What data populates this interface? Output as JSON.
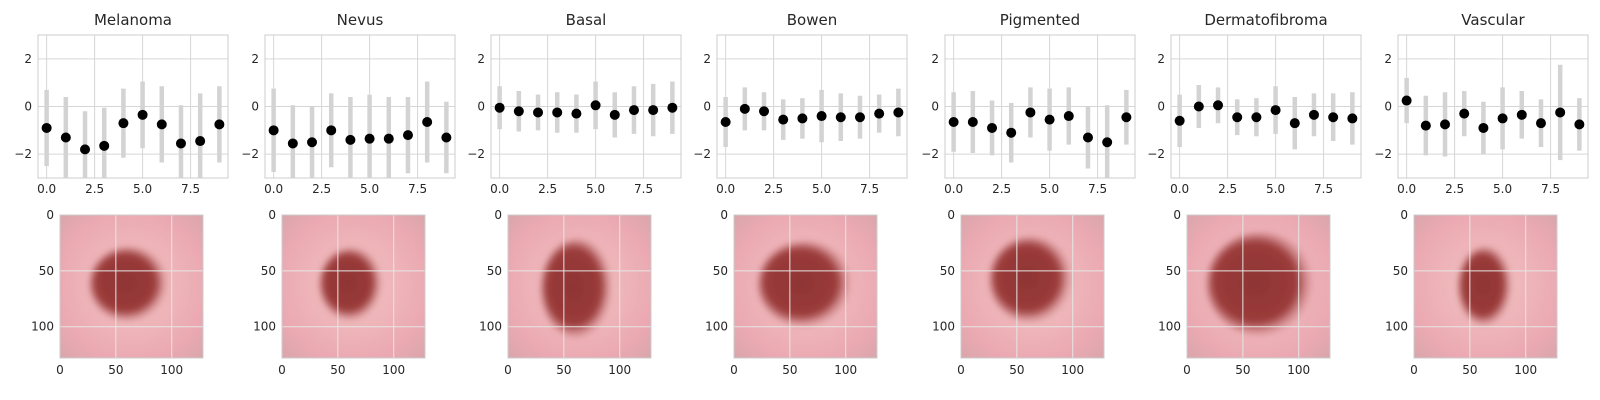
{
  "figure": {
    "background": "#ffffff"
  },
  "style": {
    "grid": "#d6d6d6",
    "frame": "#cccccc",
    "errorbar": "#d3d3d3",
    "marker": "#000000",
    "skin": "#eba9b2",
    "lesion": "#8e3434"
  },
  "chart_data": [
    {
      "type": "scatter",
      "title": "Melanoma",
      "x": [
        0,
        1,
        2,
        3,
        4,
        5,
        6,
        7,
        8,
        9
      ],
      "y": [
        -0.9,
        -1.3,
        -1.8,
        -1.65,
        -0.7,
        -0.35,
        -0.75,
        -1.55,
        -1.45,
        -0.75
      ],
      "err": [
        1.6,
        1.7,
        1.6,
        1.6,
        1.45,
        1.4,
        1.6,
        1.6,
        2.0,
        1.6
      ],
      "xticks": [
        0.0,
        2.5,
        5.0,
        7.5
      ],
      "xtick_labels": [
        "0.0",
        "2.5",
        "5.0",
        "7.5"
      ],
      "yticks": [
        -2,
        0,
        2
      ],
      "ytick_labels": [
        "−2",
        "0",
        "2"
      ],
      "xlim": [
        -0.45,
        9.45
      ],
      "ylim": [
        -3,
        3
      ],
      "grid": true,
      "image": {
        "type": "heatmap",
        "tick_labels_x": [
          "0",
          "50",
          "100"
        ],
        "tick_labels_y": [
          "0",
          "50",
          "100"
        ],
        "extent": [
          0,
          128
        ],
        "lesion": {
          "cx": 62,
          "cy": 62,
          "rx": 35,
          "ry": 33
        }
      }
    },
    {
      "type": "scatter",
      "title": "Nevus",
      "x": [
        0,
        1,
        2,
        3,
        4,
        5,
        6,
        7,
        8,
        9
      ],
      "y": [
        -1.0,
        -1.55,
        -1.5,
        -1.0,
        -1.4,
        -1.35,
        -1.35,
        -1.2,
        -0.65,
        -1.3
      ],
      "err": [
        1.75,
        1.6,
        1.5,
        1.55,
        1.8,
        1.85,
        1.75,
        1.6,
        1.7,
        1.5
      ],
      "xticks": [
        0.0,
        2.5,
        5.0,
        7.5
      ],
      "xtick_labels": [
        "0.0",
        "2.5",
        "5.0",
        "7.5"
      ],
      "yticks": [
        -2,
        0,
        2
      ],
      "ytick_labels": [
        "−2",
        "0",
        "2"
      ],
      "xlim": [
        -0.45,
        9.45
      ],
      "ylim": [
        -3,
        3
      ],
      "grid": true,
      "image": {
        "type": "heatmap",
        "tick_labels_x": [
          "0",
          "50",
          "100"
        ],
        "tick_labels_y": [
          "0",
          "50",
          "100"
        ],
        "extent": [
          0,
          128
        ],
        "lesion": {
          "cx": 62,
          "cy": 62,
          "rx": 28,
          "ry": 32
        }
      }
    },
    {
      "type": "scatter",
      "title": "Basal",
      "x": [
        0,
        1,
        2,
        3,
        4,
        5,
        6,
        7,
        8,
        9
      ],
      "y": [
        -0.05,
        -0.2,
        -0.25,
        -0.25,
        -0.3,
        0.05,
        -0.35,
        -0.15,
        -0.15,
        -0.05
      ],
      "err": [
        0.9,
        0.85,
        0.75,
        0.85,
        0.8,
        1.0,
        0.95,
        1.0,
        1.1,
        1.1
      ],
      "xticks": [
        0.0,
        2.5,
        5.0,
        7.5
      ],
      "xtick_labels": [
        "0.0",
        "2.5",
        "5.0",
        "7.5"
      ],
      "yticks": [
        -2,
        0,
        2
      ],
      "ytick_labels": [
        "−2",
        "0",
        "2"
      ],
      "xlim": [
        -0.45,
        9.45
      ],
      "ylim": [
        -3,
        3
      ],
      "grid": true,
      "image": {
        "type": "heatmap",
        "tick_labels_x": [
          "0",
          "50",
          "100"
        ],
        "tick_labels_y": [
          "0",
          "50",
          "100"
        ],
        "extent": [
          0,
          128
        ],
        "lesion": {
          "cx": 62,
          "cy": 66,
          "rx": 32,
          "ry": 44
        }
      }
    },
    {
      "type": "scatter",
      "title": "Bowen",
      "x": [
        0,
        1,
        2,
        3,
        4,
        5,
        6,
        7,
        8,
        9
      ],
      "y": [
        -0.65,
        -0.1,
        -0.2,
        -0.55,
        -0.5,
        -0.4,
        -0.45,
        -0.45,
        -0.3,
        -0.25
      ],
      "err": [
        1.05,
        0.9,
        0.8,
        0.85,
        0.85,
        1.1,
        1.0,
        0.9,
        0.8,
        1.0
      ],
      "xticks": [
        0.0,
        2.5,
        5.0,
        7.5
      ],
      "xtick_labels": [
        "0.0",
        "2.5",
        "5.0",
        "7.5"
      ],
      "yticks": [
        -2,
        0,
        2
      ],
      "ytick_labels": [
        "−2",
        "0",
        "2"
      ],
      "xlim": [
        -0.45,
        9.45
      ],
      "ylim": [
        -3,
        3
      ],
      "grid": true,
      "image": {
        "type": "heatmap",
        "tick_labels_x": [
          "0",
          "50",
          "100"
        ],
        "tick_labels_y": [
          "0",
          "50",
          "100"
        ],
        "extent": [
          0,
          128
        ],
        "lesion": {
          "cx": 64,
          "cy": 62,
          "rx": 42,
          "ry": 38
        }
      }
    },
    {
      "type": "scatter",
      "title": "Pigmented",
      "x": [
        0,
        1,
        2,
        3,
        4,
        5,
        6,
        7,
        8,
        9
      ],
      "y": [
        -0.65,
        -0.65,
        -0.9,
        -1.1,
        -0.25,
        -0.55,
        -0.4,
        -1.3,
        -1.5,
        -0.45
      ],
      "err": [
        1.25,
        1.3,
        1.15,
        1.25,
        1.05,
        1.3,
        1.2,
        1.3,
        1.55,
        1.15
      ],
      "xticks": [
        0.0,
        2.5,
        5.0,
        7.5
      ],
      "xtick_labels": [
        "0.0",
        "2.5",
        "5.0",
        "7.5"
      ],
      "yticks": [
        -2,
        0,
        2
      ],
      "ytick_labels": [
        "−2",
        "0",
        "2"
      ],
      "xlim": [
        -0.45,
        9.45
      ],
      "ylim": [
        -3,
        3
      ],
      "grid": true,
      "image": {
        "type": "heatmap",
        "tick_labels_x": [
          "0",
          "50",
          "100"
        ],
        "tick_labels_y": [
          "0",
          "50",
          "100"
        ],
        "extent": [
          0,
          128
        ],
        "lesion": {
          "cx": 63,
          "cy": 58,
          "rx": 37,
          "ry": 38
        }
      }
    },
    {
      "type": "scatter",
      "title": "Dermatofibroma",
      "x": [
        0,
        1,
        2,
        3,
        4,
        5,
        6,
        7,
        8,
        9
      ],
      "y": [
        -0.6,
        0.0,
        0.05,
        -0.45,
        -0.45,
        -0.15,
        -0.7,
        -0.35,
        -0.45,
        -0.5
      ],
      "err": [
        1.1,
        0.9,
        0.75,
        0.75,
        0.8,
        1.0,
        1.1,
        0.9,
        1.0,
        1.1
      ],
      "xticks": [
        0.0,
        2.5,
        5.0,
        7.5
      ],
      "xtick_labels": [
        "0.0",
        "2.5",
        "5.0",
        "7.5"
      ],
      "yticks": [
        -2,
        0,
        2
      ],
      "ytick_labels": [
        "−2",
        "0",
        "2"
      ],
      "xlim": [
        -0.45,
        9.45
      ],
      "ylim": [
        -3,
        3
      ],
      "grid": true,
      "image": {
        "type": "heatmap",
        "tick_labels_x": [
          "0",
          "50",
          "100"
        ],
        "tick_labels_y": [
          "0",
          "50",
          "100"
        ],
        "extent": [
          0,
          128
        ],
        "lesion": {
          "cx": 66,
          "cy": 62,
          "rx": 48,
          "ry": 46
        }
      }
    },
    {
      "type": "scatter",
      "title": "Vascular",
      "x": [
        0,
        1,
        2,
        3,
        4,
        5,
        6,
        7,
        8,
        9
      ],
      "y": [
        0.25,
        -0.8,
        -0.75,
        -0.3,
        -0.9,
        -0.5,
        -0.35,
        -0.7,
        -0.25,
        -0.75
      ],
      "err": [
        0.95,
        1.25,
        1.35,
        0.95,
        1.1,
        1.3,
        1.0,
        1.0,
        2.0,
        1.1
      ],
      "xticks": [
        0.0,
        2.5,
        5.0,
        7.5
      ],
      "xtick_labels": [
        "0.0",
        "2.5",
        "5.0",
        "7.5"
      ],
      "yticks": [
        -2,
        0,
        2
      ],
      "ytick_labels": [
        "−2",
        "0",
        "2"
      ],
      "xlim": [
        -0.45,
        9.45
      ],
      "ylim": [
        -3,
        3
      ],
      "grid": true,
      "image": {
        "type": "heatmap",
        "tick_labels_x": [
          "0",
          "50",
          "100"
        ],
        "tick_labels_y": [
          "0",
          "50",
          "100"
        ],
        "extent": [
          0,
          128
        ],
        "lesion": {
          "cx": 64,
          "cy": 64,
          "rx": 24,
          "ry": 35
        }
      }
    }
  ]
}
